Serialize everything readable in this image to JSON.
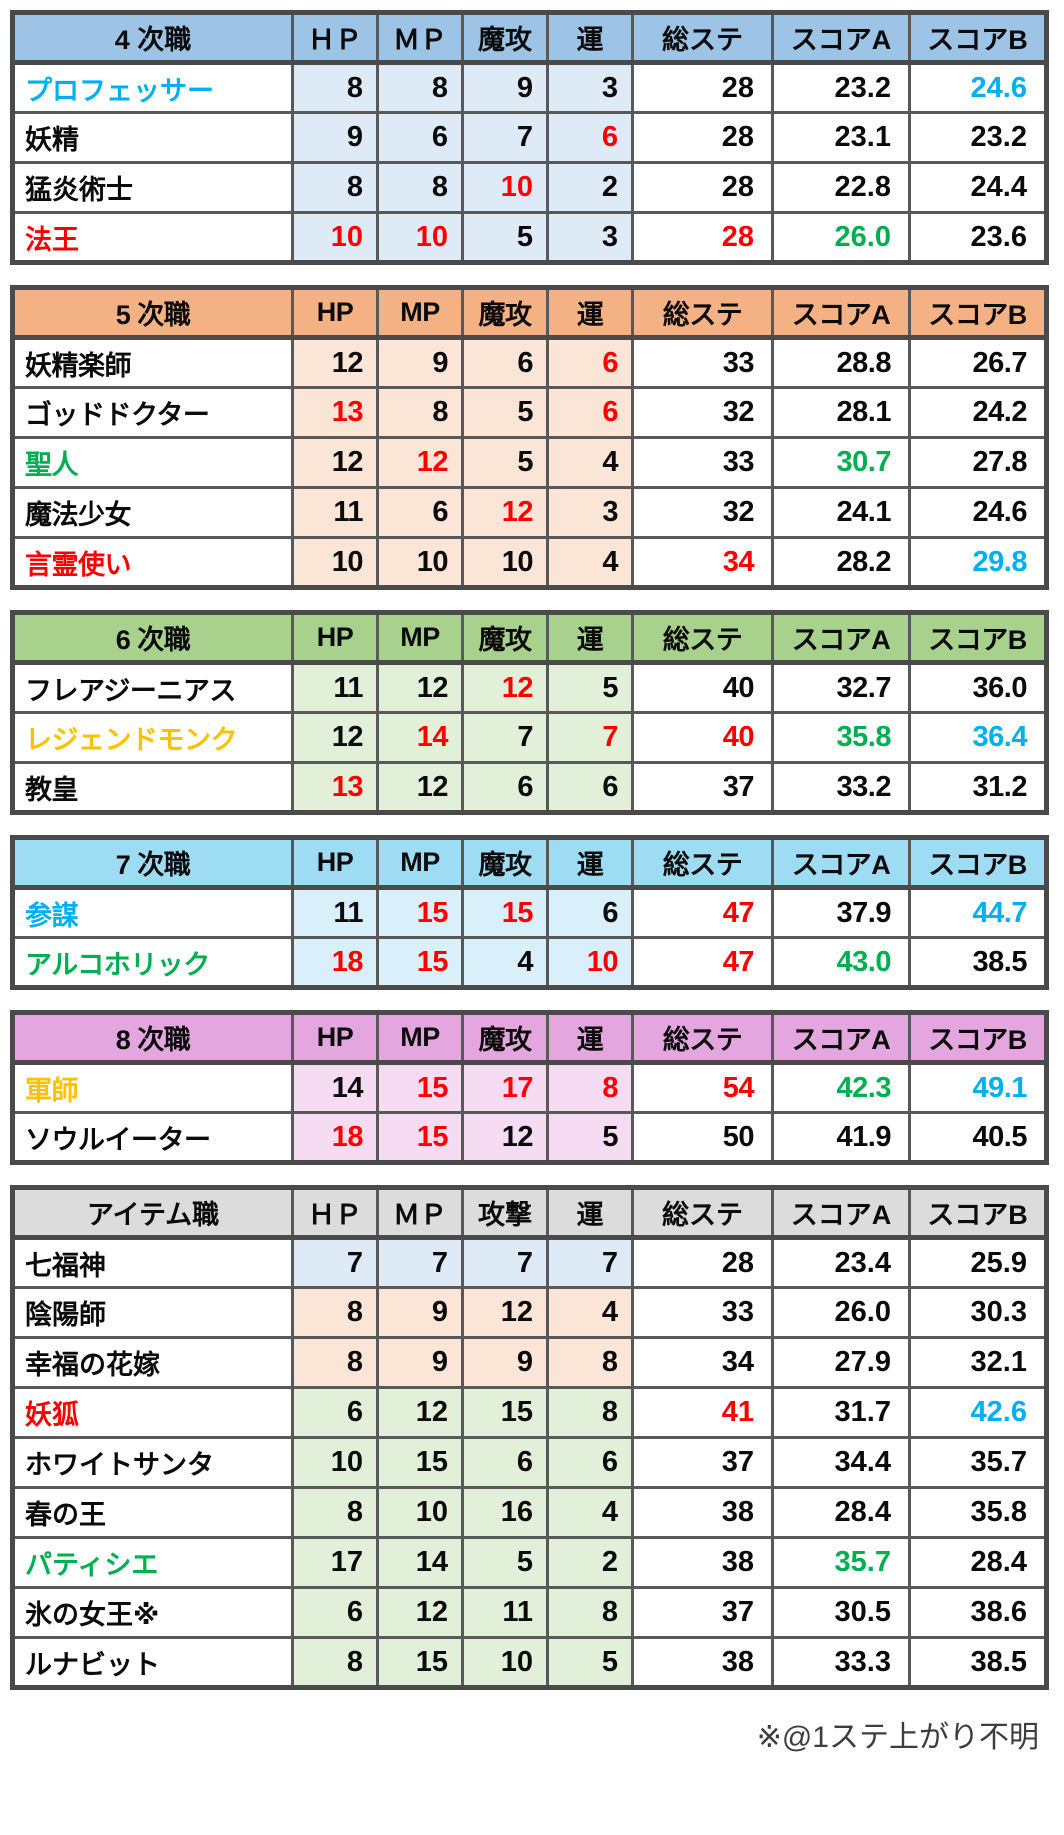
{
  "page": {
    "background": "#ffffff",
    "footnote": "※@1ステ上がり不明"
  },
  "colors": {
    "red": "#ff0000",
    "green": "#00b050",
    "blue": "#00b0f0",
    "gold": "#ffc000",
    "default": "#0b0b0b",
    "border_inner": "#595959",
    "border_outer": "#4a4a4a",
    "footnote_text": "#3d3d3d"
  },
  "tables": [
    {
      "id": "tier4",
      "title": "4 次職",
      "header_bg": "#9dc3e6",
      "stat_bg": "#deebf7",
      "columns": [
        "ＨＰ",
        "ＭＰ",
        "魔攻",
        "運",
        "総ステ",
        "スコアA",
        "スコアB"
      ],
      "rows": [
        {
          "name": "プロフェッサー",
          "name_color": "blue",
          "cells": [
            [
              "8"
            ],
            [
              "8"
            ],
            [
              "9"
            ],
            [
              "3"
            ],
            [
              "28"
            ],
            [
              "23.2"
            ],
            [
              "24.6",
              "blue"
            ]
          ]
        },
        {
          "name": "妖精",
          "cells": [
            [
              "9"
            ],
            [
              "6"
            ],
            [
              "7"
            ],
            [
              "6",
              "red"
            ],
            [
              "28"
            ],
            [
              "23.1"
            ],
            [
              "23.2"
            ]
          ]
        },
        {
          "name": "猛炎術士",
          "cells": [
            [
              "8"
            ],
            [
              "8"
            ],
            [
              "10",
              "red"
            ],
            [
              "2"
            ],
            [
              "28"
            ],
            [
              "22.8"
            ],
            [
              "24.4"
            ]
          ]
        },
        {
          "name": "法王",
          "name_color": "red",
          "cells": [
            [
              "10",
              "red"
            ],
            [
              "10",
              "red"
            ],
            [
              "5"
            ],
            [
              "3"
            ],
            [
              "28",
              "red"
            ],
            [
              "26.0",
              "green"
            ],
            [
              "23.6"
            ]
          ]
        }
      ]
    },
    {
      "id": "tier5",
      "title": "5 次職",
      "header_bg": "#f4b183",
      "stat_bg": "#fbe5d6",
      "condensed": true,
      "columns": [
        "HP",
        "MP",
        "魔攻",
        "運",
        "総ステ",
        "スコアA",
        "スコアB"
      ],
      "rows": [
        {
          "name": "妖精楽師",
          "cells": [
            [
              "12"
            ],
            [
              "9"
            ],
            [
              "6"
            ],
            [
              "6",
              "red"
            ],
            [
              "33"
            ],
            [
              "28.8"
            ],
            [
              "26.7"
            ]
          ]
        },
        {
          "name": "ゴッドドクター",
          "cells": [
            [
              "13",
              "red"
            ],
            [
              "8"
            ],
            [
              "5"
            ],
            [
              "6",
              "red"
            ],
            [
              "32"
            ],
            [
              "28.1"
            ],
            [
              "24.2"
            ]
          ]
        },
        {
          "name": "聖人",
          "name_color": "green",
          "cells": [
            [
              "12"
            ],
            [
              "12",
              "red"
            ],
            [
              "5"
            ],
            [
              "4"
            ],
            [
              "33"
            ],
            [
              "30.7",
              "green"
            ],
            [
              "27.8"
            ]
          ]
        },
        {
          "name": "魔法少女",
          "cells": [
            [
              "11"
            ],
            [
              "6"
            ],
            [
              "12",
              "red"
            ],
            [
              "3"
            ],
            [
              "32"
            ],
            [
              "24.1"
            ],
            [
              "24.6"
            ]
          ]
        },
        {
          "name": "言霊使い",
          "name_color": "red",
          "cells": [
            [
              "10"
            ],
            [
              "10"
            ],
            [
              "10"
            ],
            [
              "4"
            ],
            [
              "34",
              "red"
            ],
            [
              "28.2"
            ],
            [
              "29.8",
              "blue"
            ]
          ]
        }
      ]
    },
    {
      "id": "tier6",
      "title": "6 次職",
      "header_bg": "#a9d18e",
      "stat_bg": "#e2f0d9",
      "condensed": true,
      "columns": [
        "HP",
        "MP",
        "魔攻",
        "運",
        "総ステ",
        "スコアA",
        "スコアB"
      ],
      "rows": [
        {
          "name": "フレアジーニアス",
          "cells": [
            [
              "11"
            ],
            [
              "12"
            ],
            [
              "12",
              "red"
            ],
            [
              "5"
            ],
            [
              "40"
            ],
            [
              "32.7"
            ],
            [
              "36.0"
            ]
          ]
        },
        {
          "name": "レジェンドモンク",
          "name_color": "gold",
          "cells": [
            [
              "12"
            ],
            [
              "14",
              "red"
            ],
            [
              "7"
            ],
            [
              "7",
              "red"
            ],
            [
              "40",
              "red"
            ],
            [
              "35.8",
              "green"
            ],
            [
              "36.4",
              "blue"
            ]
          ]
        },
        {
          "name": "教皇",
          "cells": [
            [
              "13",
              "red"
            ],
            [
              "12"
            ],
            [
              "6"
            ],
            [
              "6"
            ],
            [
              "37"
            ],
            [
              "33.2"
            ],
            [
              "31.2"
            ]
          ]
        }
      ]
    },
    {
      "id": "tier7",
      "title": "7 次職",
      "header_bg": "#9edcf4",
      "stat_bg": "#d9f0fb",
      "condensed": true,
      "columns": [
        "HP",
        "MP",
        "魔攻",
        "運",
        "総ステ",
        "スコアA",
        "スコアB"
      ],
      "rows": [
        {
          "name": "参謀",
          "name_color": "blue",
          "cells": [
            [
              "11"
            ],
            [
              "15",
              "red"
            ],
            [
              "15",
              "red"
            ],
            [
              "6"
            ],
            [
              "47",
              "red"
            ],
            [
              "37.9"
            ],
            [
              "44.7",
              "blue"
            ]
          ]
        },
        {
          "name": "アルコホリック",
          "name_color": "green",
          "cells": [
            [
              "18",
              "red"
            ],
            [
              "15",
              "red"
            ],
            [
              "4"
            ],
            [
              "10",
              "red"
            ],
            [
              "47",
              "red"
            ],
            [
              "43.0",
              "green"
            ],
            [
              "38.5"
            ]
          ]
        }
      ]
    },
    {
      "id": "tier8",
      "title": "8 次職",
      "header_bg": "#e3a6de",
      "stat_bg": "#f5dcf3",
      "condensed": true,
      "columns": [
        "HP",
        "MP",
        "魔攻",
        "運",
        "総ステ",
        "スコアA",
        "スコアB"
      ],
      "rows": [
        {
          "name": "軍師",
          "name_color": "gold",
          "cells": [
            [
              "14"
            ],
            [
              "15",
              "red"
            ],
            [
              "17",
              "red"
            ],
            [
              "8",
              "red"
            ],
            [
              "54",
              "red"
            ],
            [
              "42.3",
              "green"
            ],
            [
              "49.1",
              "blue"
            ]
          ]
        },
        {
          "name": "ソウルイーター",
          "cells": [
            [
              "18",
              "red"
            ],
            [
              "15",
              "red"
            ],
            [
              "12"
            ],
            [
              "5"
            ],
            [
              "50"
            ],
            [
              "41.9"
            ],
            [
              "40.5"
            ]
          ]
        }
      ]
    },
    {
      "id": "item",
      "title": "アイテム職",
      "header_bg": "#dcdcdc",
      "stat_bg": "#e2f0d9",
      "columns": [
        "ＨＰ",
        "ＭＰ",
        "攻撃",
        "運",
        "総ステ",
        "スコアA",
        "スコアB"
      ],
      "rows": [
        {
          "name": "七福神",
          "stat_bg": "#deebf7",
          "cells": [
            [
              "7"
            ],
            [
              "7"
            ],
            [
              "7"
            ],
            [
              "7"
            ],
            [
              "28"
            ],
            [
              "23.4"
            ],
            [
              "25.9"
            ]
          ]
        },
        {
          "name": "陰陽師",
          "stat_bg": "#fbe5d6",
          "cells": [
            [
              "8"
            ],
            [
              "9"
            ],
            [
              "12"
            ],
            [
              "4"
            ],
            [
              "33"
            ],
            [
              "26.0"
            ],
            [
              "30.3"
            ]
          ]
        },
        {
          "name": "幸福の花嫁",
          "stat_bg": "#fbe5d6",
          "cells": [
            [
              "8"
            ],
            [
              "9"
            ],
            [
              "9"
            ],
            [
              "8"
            ],
            [
              "34"
            ],
            [
              "27.9"
            ],
            [
              "32.1"
            ]
          ]
        },
        {
          "name": "妖狐",
          "name_color": "red",
          "stat_bg": "#e2f0d9",
          "cells": [
            [
              "6"
            ],
            [
              "12"
            ],
            [
              "15"
            ],
            [
              "8"
            ],
            [
              "41",
              "red"
            ],
            [
              "31.7"
            ],
            [
              "42.6",
              "blue"
            ]
          ]
        },
        {
          "name": "ホワイトサンタ",
          "stat_bg": "#e2f0d9",
          "cells": [
            [
              "10"
            ],
            [
              "15"
            ],
            [
              "6"
            ],
            [
              "6"
            ],
            [
              "37"
            ],
            [
              "34.4"
            ],
            [
              "35.7"
            ]
          ]
        },
        {
          "name": "春の王",
          "stat_bg": "#e2f0d9",
          "cells": [
            [
              "8"
            ],
            [
              "10"
            ],
            [
              "16"
            ],
            [
              "4"
            ],
            [
              "38"
            ],
            [
              "28.4"
            ],
            [
              "35.8"
            ]
          ]
        },
        {
          "name": "パティシエ",
          "name_color": "green",
          "stat_bg": "#e2f0d9",
          "cells": [
            [
              "17"
            ],
            [
              "14"
            ],
            [
              "5"
            ],
            [
              "2"
            ],
            [
              "38"
            ],
            [
              "35.7",
              "green"
            ],
            [
              "28.4"
            ]
          ]
        },
        {
          "name": "氷の女王※",
          "stat_bg": "#e2f0d9",
          "cells": [
            [
              "6"
            ],
            [
              "12"
            ],
            [
              "11"
            ],
            [
              "8"
            ],
            [
              "37"
            ],
            [
              "30.5"
            ],
            [
              "38.6"
            ]
          ]
        },
        {
          "name": "ルナビット",
          "stat_bg": "#e2f0d9",
          "cells": [
            [
              "8"
            ],
            [
              "15"
            ],
            [
              "10"
            ],
            [
              "5"
            ],
            [
              "38"
            ],
            [
              "33.3"
            ],
            [
              "38.5"
            ]
          ]
        }
      ]
    }
  ]
}
